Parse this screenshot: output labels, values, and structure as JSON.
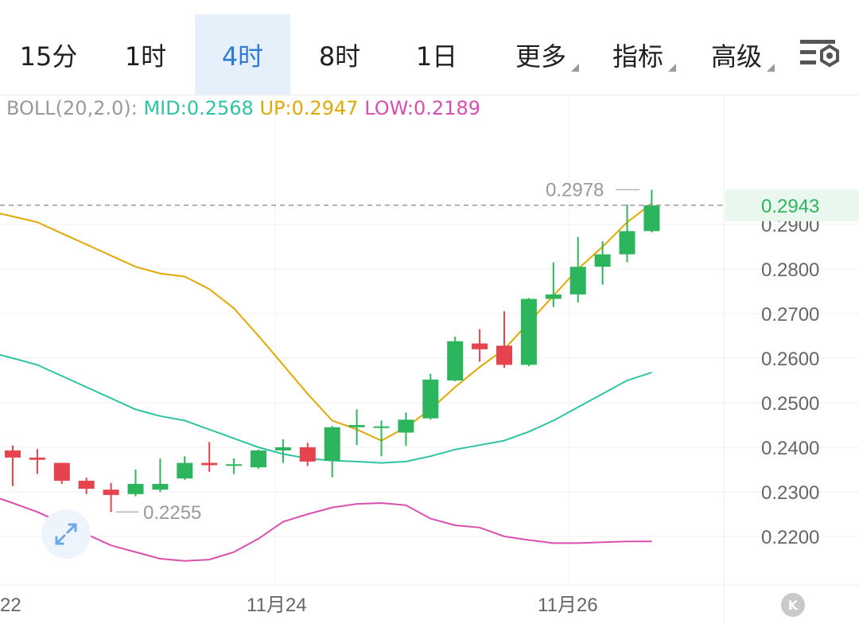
{
  "tabs": [
    {
      "label": "15分",
      "active": false
    },
    {
      "label": "1时",
      "active": false
    },
    {
      "label": "4时",
      "active": true
    },
    {
      "label": "8时",
      "active": false
    },
    {
      "label": "1日",
      "active": false
    },
    {
      "label": "更多",
      "active": false
    },
    {
      "label": "指标",
      "active": false
    },
    {
      "label": "高级",
      "active": false
    }
  ],
  "indicator": {
    "name": "BOLL(20,2.0):",
    "mid": "MID:0.2568",
    "up": "UP:0.2947",
    "low": "LOW:0.2189"
  },
  "colors": {
    "up_candle": "#2db55d",
    "down_candle": "#e5434d",
    "mid": "#2ec4a0",
    "upper": "#e0a800",
    "lower": "#d94fb0",
    "current_price": "#2db55d",
    "active_tab": "#2e7ad8"
  },
  "chart_data": {
    "type": "candlestick",
    "y_axis": {
      "ticks": [
        "0.2200",
        "0.2300",
        "0.2400",
        "0.2500",
        "0.2600",
        "0.2700",
        "0.2800",
        "0.2900"
      ],
      "range": [
        0.209,
        0.3195
      ]
    },
    "x_axis": {
      "labels": [
        "22",
        "11月24",
        "11月26"
      ]
    },
    "current_price": "0.2943",
    "high_label": "0.2978",
    "low_label": "0.2255",
    "candles": [
      {
        "o": 0.2393,
        "h": 0.2404,
        "l": 0.2313,
        "c": 0.2377
      },
      {
        "o": 0.2377,
        "h": 0.2396,
        "l": 0.234,
        "c": 0.2372
      },
      {
        "o": 0.2365,
        "h": 0.2365,
        "l": 0.2318,
        "c": 0.2325
      },
      {
        "o": 0.2325,
        "h": 0.2332,
        "l": 0.2295,
        "c": 0.2307
      },
      {
        "o": 0.2305,
        "h": 0.232,
        "l": 0.2255,
        "c": 0.2293
      },
      {
        "o": 0.2295,
        "h": 0.235,
        "l": 0.229,
        "c": 0.2318
      },
      {
        "o": 0.2305,
        "h": 0.2375,
        "l": 0.23,
        "c": 0.2318
      },
      {
        "o": 0.233,
        "h": 0.238,
        "l": 0.2327,
        "c": 0.2365
      },
      {
        "o": 0.2365,
        "h": 0.2412,
        "l": 0.2345,
        "c": 0.236
      },
      {
        "o": 0.236,
        "h": 0.2375,
        "l": 0.234,
        "c": 0.2362
      },
      {
        "o": 0.2355,
        "h": 0.2395,
        "l": 0.2352,
        "c": 0.2393
      },
      {
        "o": 0.2393,
        "h": 0.2418,
        "l": 0.2365,
        "c": 0.24
      },
      {
        "o": 0.24,
        "h": 0.241,
        "l": 0.2358,
        "c": 0.2368
      },
      {
        "o": 0.237,
        "h": 0.2448,
        "l": 0.2333,
        "c": 0.2445
      },
      {
        "o": 0.2445,
        "h": 0.2485,
        "l": 0.2405,
        "c": 0.245
      },
      {
        "o": 0.2445,
        "h": 0.246,
        "l": 0.238,
        "c": 0.2447
      },
      {
        "o": 0.2433,
        "h": 0.2478,
        "l": 0.2403,
        "c": 0.2462
      },
      {
        "o": 0.2465,
        "h": 0.2565,
        "l": 0.2462,
        "c": 0.2552
      },
      {
        "o": 0.255,
        "h": 0.2648,
        "l": 0.2548,
        "c": 0.2638
      },
      {
        "o": 0.2633,
        "h": 0.2665,
        "l": 0.2592,
        "c": 0.262
      },
      {
        "o": 0.2628,
        "h": 0.2705,
        "l": 0.2578,
        "c": 0.2585
      },
      {
        "o": 0.2585,
        "h": 0.2735,
        "l": 0.2582,
        "c": 0.2733
      },
      {
        "o": 0.2733,
        "h": 0.2815,
        "l": 0.2715,
        "c": 0.2743
      },
      {
        "o": 0.2743,
        "h": 0.2872,
        "l": 0.2725,
        "c": 0.2805
      },
      {
        "o": 0.2805,
        "h": 0.2862,
        "l": 0.2765,
        "c": 0.2833
      },
      {
        "o": 0.2833,
        "h": 0.2945,
        "l": 0.2815,
        "c": 0.2885
      },
      {
        "o": 0.2885,
        "h": 0.2978,
        "l": 0.2882,
        "c": 0.2943
      }
    ],
    "boll_up": [
      0.2918,
      0.2905,
      0.288,
      0.2855,
      0.283,
      0.2805,
      0.279,
      0.2783,
      0.2755,
      0.2712,
      0.265,
      0.2585,
      0.252,
      0.246,
      0.244,
      0.2415,
      0.2445,
      0.2485,
      0.2535,
      0.258,
      0.262,
      0.268,
      0.274,
      0.28,
      0.285,
      0.2905,
      0.2947
    ],
    "boll_mid": [
      0.26,
      0.2585,
      0.256,
      0.2535,
      0.251,
      0.2485,
      0.247,
      0.246,
      0.244,
      0.242,
      0.24,
      0.2385,
      0.2375,
      0.237,
      0.2368,
      0.2365,
      0.2368,
      0.238,
      0.2395,
      0.2405,
      0.2415,
      0.2435,
      0.246,
      0.249,
      0.252,
      0.255,
      0.2568
    ],
    "boll_low": [
      0.2275,
      0.2255,
      0.223,
      0.2205,
      0.218,
      0.2165,
      0.215,
      0.2145,
      0.2148,
      0.2165,
      0.2195,
      0.2233,
      0.225,
      0.2265,
      0.2273,
      0.2275,
      0.227,
      0.224,
      0.2225,
      0.222,
      0.22,
      0.2192,
      0.2185,
      0.2185,
      0.2187,
      0.2189,
      0.2189
    ]
  }
}
